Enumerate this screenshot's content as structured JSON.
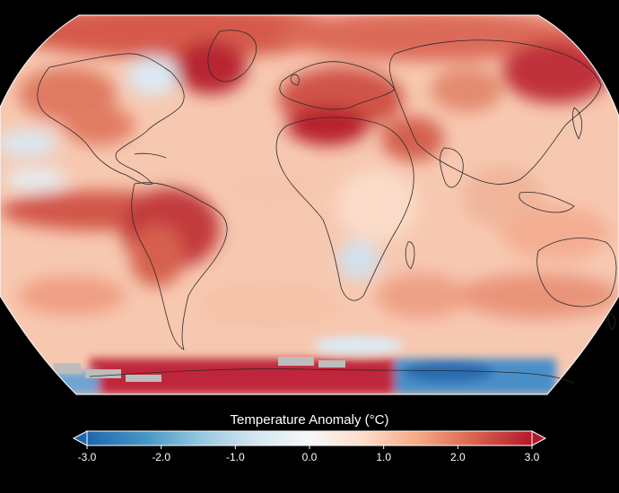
{
  "legend": {
    "title": "Temperature Anomaly (°C)",
    "min": -3.0,
    "max": 3.0,
    "ticks": [
      {
        "value": -3.0,
        "label": "-3.0"
      },
      {
        "value": -2.0,
        "label": "-2.0"
      },
      {
        "value": -1.0,
        "label": "-1.0"
      },
      {
        "value": 0.0,
        "label": "0.0"
      },
      {
        "value": 1.0,
        "label": "1.0"
      },
      {
        "value": 2.0,
        "label": "2.0"
      },
      {
        "value": 3.0,
        "label": "3.0"
      }
    ],
    "colors": [
      "#2166ac",
      "#4393c3",
      "#92c5de",
      "#d1e5f0",
      "#f7f7f7",
      "#fddbc7",
      "#f4a582",
      "#d6604d",
      "#b2182b"
    ]
  },
  "map": {
    "projection": "Robinson-like",
    "background_color": "#000000",
    "no_data_color": "#bdbdbd"
  }
}
